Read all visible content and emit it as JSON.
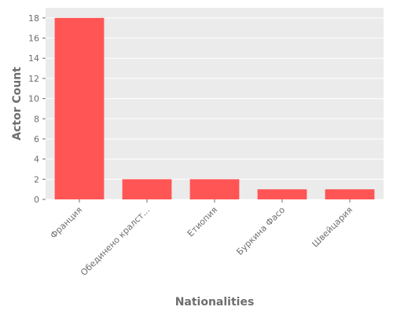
{
  "chart_data": {
    "type": "bar",
    "title": "",
    "xlabel": "Nationalities",
    "ylabel": "Actor Count",
    "categories": [
      "Франция",
      "Обединено кралст...",
      "Етиопия",
      "Буркина Фасо",
      "Швейцария"
    ],
    "values": [
      18,
      2,
      2,
      1,
      1
    ],
    "ylim": [
      0,
      19
    ],
    "yticks": [
      0,
      2,
      4,
      6,
      8,
      10,
      12,
      14,
      16,
      18
    ],
    "grid": true,
    "colors": {
      "bar": "#ff5555",
      "plot_background": "#ebebeb",
      "grid": "#ffffff",
      "text": "#6e6e6e"
    }
  }
}
